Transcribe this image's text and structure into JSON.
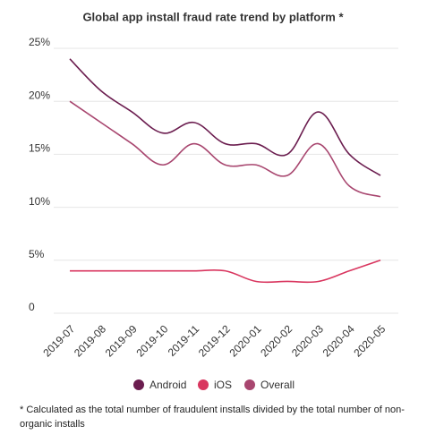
{
  "chart_data": {
    "type": "line",
    "title": "Global app install fraud rate trend by platform *",
    "categories": [
      "2019-07",
      "2019-08",
      "2019-09",
      "2019-10",
      "2019-11",
      "2019-12",
      "2020-01",
      "2020-02",
      "2020-03",
      "2020-04",
      "2020-05"
    ],
    "series": [
      {
        "name": "Android",
        "color": "#6b1d4f",
        "values": [
          24,
          21,
          19,
          17,
          18,
          16,
          16,
          15,
          19,
          15,
          13
        ]
      },
      {
        "name": "iOS",
        "color": "#d9365f",
        "values": [
          4,
          4,
          4,
          4,
          4,
          4,
          3,
          3,
          3,
          4,
          5
        ]
      },
      {
        "name": "Overall",
        "color": "#a8466f",
        "values": [
          20,
          18,
          16,
          14,
          16,
          14,
          14,
          13,
          16,
          12,
          11
        ]
      }
    ],
    "ylim": [
      0,
      25
    ],
    "yticks": [
      0,
      {
        "value": 5,
        "label": "5%"
      },
      {
        "value": 10,
        "label": "10%"
      },
      {
        "value": 15,
        "label": "15%"
      },
      {
        "value": 20,
        "label": "20%"
      },
      {
        "value": 25,
        "label": "25%"
      }
    ],
    "grid": true,
    "footnote": "* Calculated as the total number of fraudulent installs divided by the total number of non-organic installs"
  }
}
